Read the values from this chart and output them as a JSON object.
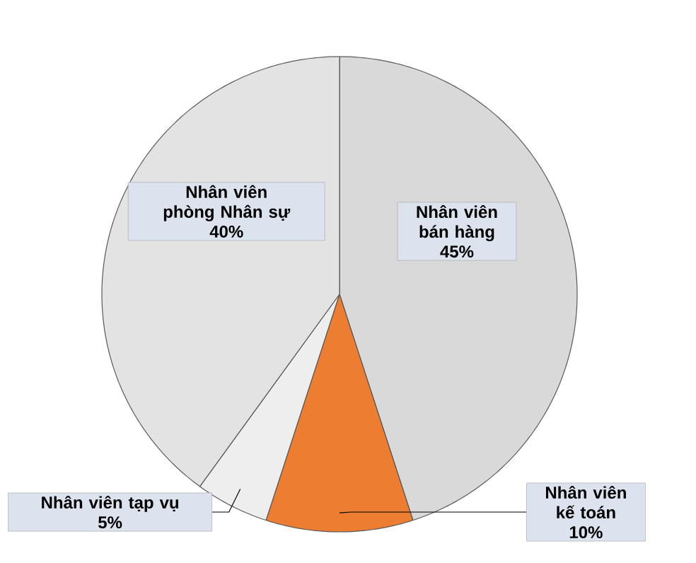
{
  "chart_data": {
    "type": "pie",
    "categories": [
      "Nhân viên bán hàng",
      "Nhân viên kế toán",
      "Nhân viên tạp vụ",
      "Nhân viên phòng Nhân sự"
    ],
    "values": [
      45,
      10,
      5,
      40
    ],
    "value_labels": [
      "45%",
      "10%",
      "5%",
      "40%"
    ],
    "colors": [
      "#d9d9d9",
      "#ed7d31",
      "#eeeeee",
      "#e3e3e3"
    ],
    "data_labels": true
  }
}
